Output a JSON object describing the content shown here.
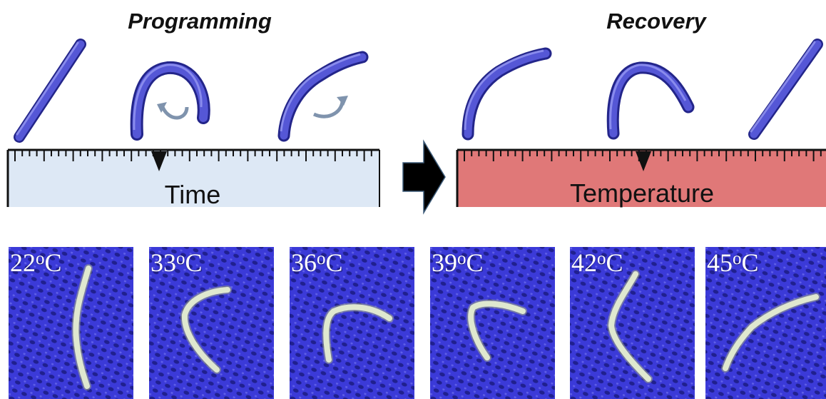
{
  "programming": {
    "title": "Programming",
    "scale_label": "Time"
  },
  "recovery": {
    "title": "Recovery",
    "scale_label": "Temperature"
  },
  "colors": {
    "rod": "#4a4ccd",
    "time_scale_fill": "#dde8f5",
    "temperature_scale_fill": "#e07878",
    "photo_background": "#3b3ad8",
    "sample": "#dfe8cf"
  },
  "photos": [
    {
      "value": "22",
      "unit_sup": "o",
      "unit": "C"
    },
    {
      "value": "33",
      "unit_sup": "o",
      "unit": "C"
    },
    {
      "value": "36",
      "unit_sup": "o",
      "unit": "C"
    },
    {
      "value": "39",
      "unit_sup": "o",
      "unit": "C"
    },
    {
      "value": "42",
      "unit_sup": "o",
      "unit": "C"
    },
    {
      "value": "45",
      "unit_sup": "o",
      "unit": "C"
    }
  ]
}
